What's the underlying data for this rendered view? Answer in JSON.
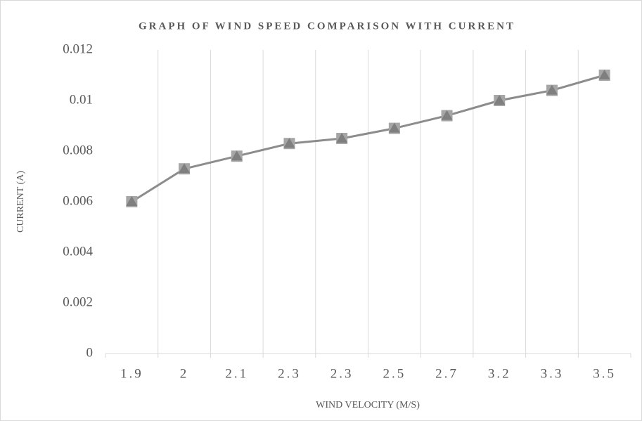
{
  "chart_data": {
    "type": "line",
    "title": "GRAPH OF WIND SPEED COMPARISON WITH CURRENT",
    "x_label": "WIND VELOCITY (M/S)",
    "y_label": "CURRENT (A)",
    "categories": [
      "1.9",
      "2",
      "2.1",
      "2.3",
      "2.3",
      "2.5",
      "2.7",
      "3.2",
      "3.3",
      "3.5"
    ],
    "values": [
      0.006,
      0.0073,
      0.0078,
      0.0083,
      0.0085,
      0.0089,
      0.0094,
      0.01,
      0.0104,
      0.011
    ],
    "color": "#8c8c8c",
    "ylim": [
      0,
      0.012
    ],
    "yticks": [
      0,
      0.002,
      0.004,
      0.006,
      0.008,
      0.01,
      0.012
    ],
    "grid": true
  }
}
